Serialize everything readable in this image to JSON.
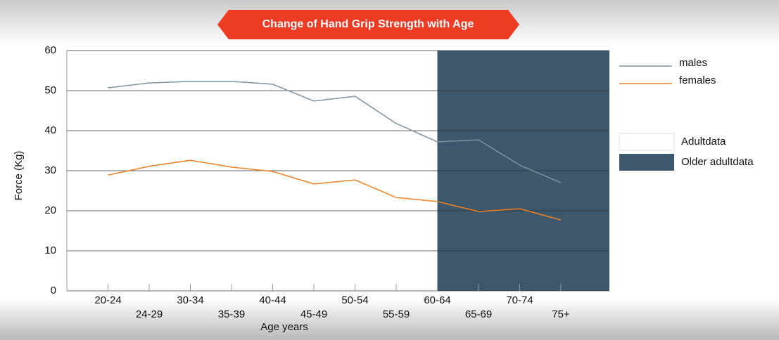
{
  "chart_data": {
    "type": "line",
    "title": "Change of Hand Grip Strength with Age",
    "xlabel": "Age years",
    "ylabel": "Force (Kg)",
    "categories": [
      "20-24",
      "24-29",
      "30-34",
      "35-39",
      "40-44",
      "45-49",
      "50-54",
      "55-59",
      "60-64",
      "65-69",
      "70-74",
      "75+"
    ],
    "series": [
      {
        "name": "males",
        "color": "#7f929e",
        "values": [
          50.7,
          51.9,
          52.3,
          52.3,
          51.6,
          47.4,
          48.6,
          41.8,
          37.2,
          37.7,
          31.4,
          27.0
        ]
      },
      {
        "name": "females",
        "color": "#f07f22",
        "values": [
          28.9,
          31.1,
          32.6,
          30.9,
          29.8,
          26.7,
          27.7,
          23.3,
          22.3,
          19.8,
          20.5,
          17.7
        ]
      }
    ],
    "regions": [
      {
        "name": "Adultdata",
        "color": "#ffffff",
        "start": "20-24"
      },
      {
        "name": "Older adultdata",
        "color": "#3d586c",
        "start": "60-64"
      }
    ],
    "ylim": [
      0,
      60
    ],
    "yticks": [
      0,
      10,
      20,
      30,
      40,
      50,
      60
    ],
    "grid": true
  }
}
